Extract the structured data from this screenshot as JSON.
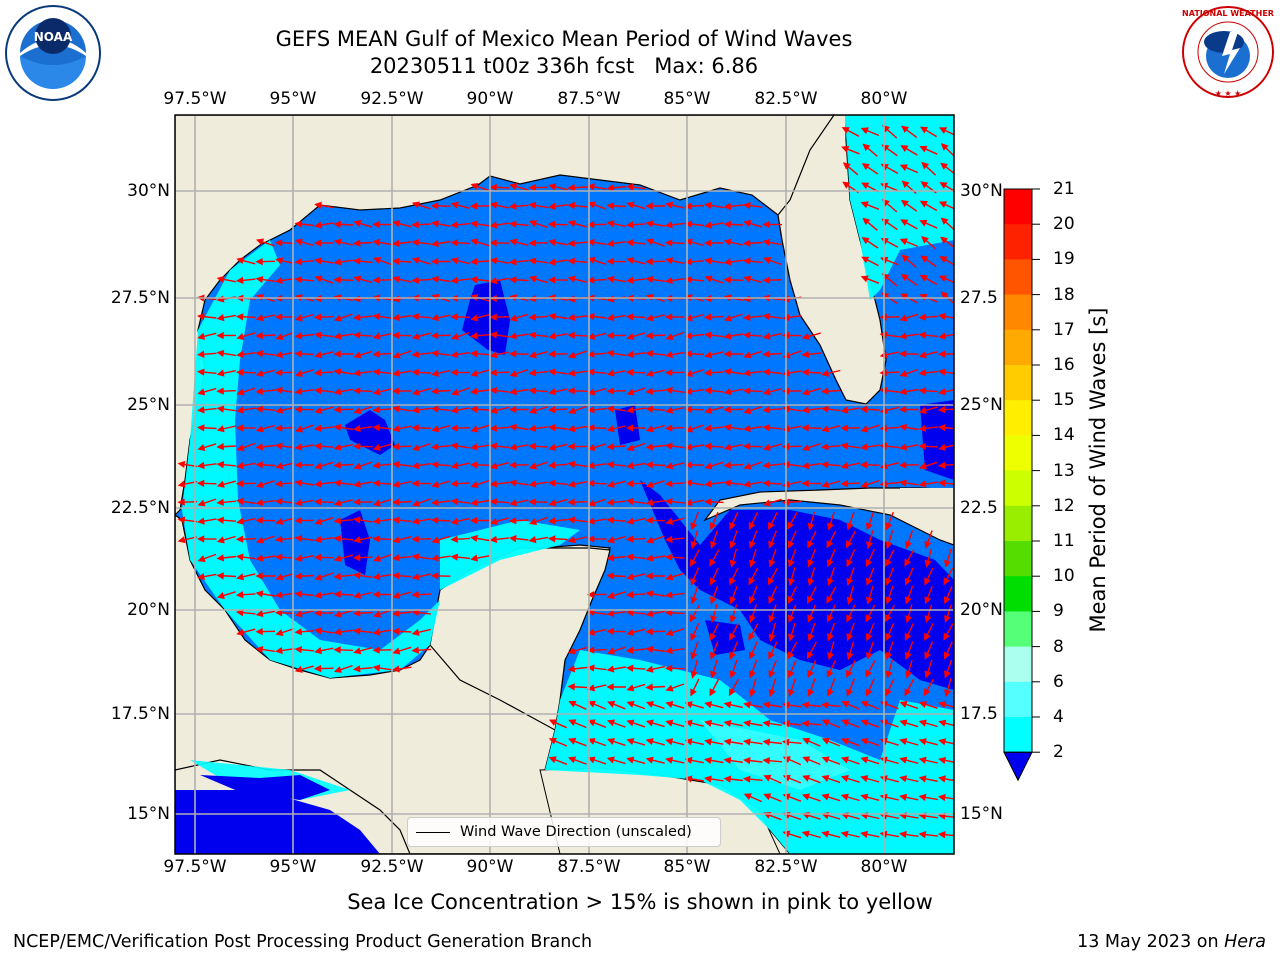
{
  "title": {
    "line1": "GEFS MEAN Gulf of Mexico Mean Period of Wind Waves",
    "line2": "20230511 t00z 336h fcst   Max: 6.86"
  },
  "map": {
    "lon_labels_top": [
      "97.5°W",
      "95°W",
      "92.5°W",
      "90°W",
      "87.5°W",
      "85°W",
      "82.5°W",
      "80°W"
    ],
    "lon_labels_bottom": [
      "97.5°W",
      "95°W",
      "92.5°W",
      "90°W",
      "87.5°W",
      "85°W",
      "82.5°W",
      "80°W"
    ],
    "lat_labels_left": [
      "30°N",
      "27.5°N",
      "25°N",
      "22.5°N",
      "20°N",
      "17.5°N",
      "15°N"
    ],
    "lat_labels_right": [
      "30°N",
      "27.5",
      "25°N",
      "22.5",
      "20°N",
      "17.5",
      "15°N"
    ],
    "extent": {
      "lon": [
        -98,
        -78.2
      ],
      "lat": [
        14.0,
        31.8
      ]
    },
    "land_color": "#efecdc",
    "grid_color": "#b0b0b0",
    "arrow_color": "#ff0000",
    "legend_label": "Wind Wave Direction (unscaled)"
  },
  "colorbar": {
    "label": "Mean Period of Wind Waves [s]",
    "ticks": [
      "21",
      "20",
      "19",
      "18",
      "17",
      "16",
      "15",
      "14",
      "13",
      "12",
      "11",
      "10",
      "9",
      "8",
      "6",
      "4",
      "2"
    ],
    "colors": [
      "#ff0000",
      "#ff2200",
      "#ff5500",
      "#ff8800",
      "#ffaa00",
      "#ffcc00",
      "#ffee00",
      "#eeff00",
      "#ccff00",
      "#99ee00",
      "#55dd00",
      "#00dd00",
      "#55ff77",
      "#aaffee",
      "#55ffff",
      "#00ffff",
      "#00eeff",
      "#0077ff"
    ],
    "under_color": "#0000ee"
  },
  "footnote": "Sea Ice Concentration > 15% is shown in pink to yellow",
  "credit": "NCEP/EMC/Verification Post Processing Product Generation Branch",
  "datestamp": {
    "date": "13 May 2023 on ",
    "host": "Hera"
  },
  "logos": {
    "left": "NOAA",
    "right": "NATIONAL WEATHER SERVICE"
  }
}
